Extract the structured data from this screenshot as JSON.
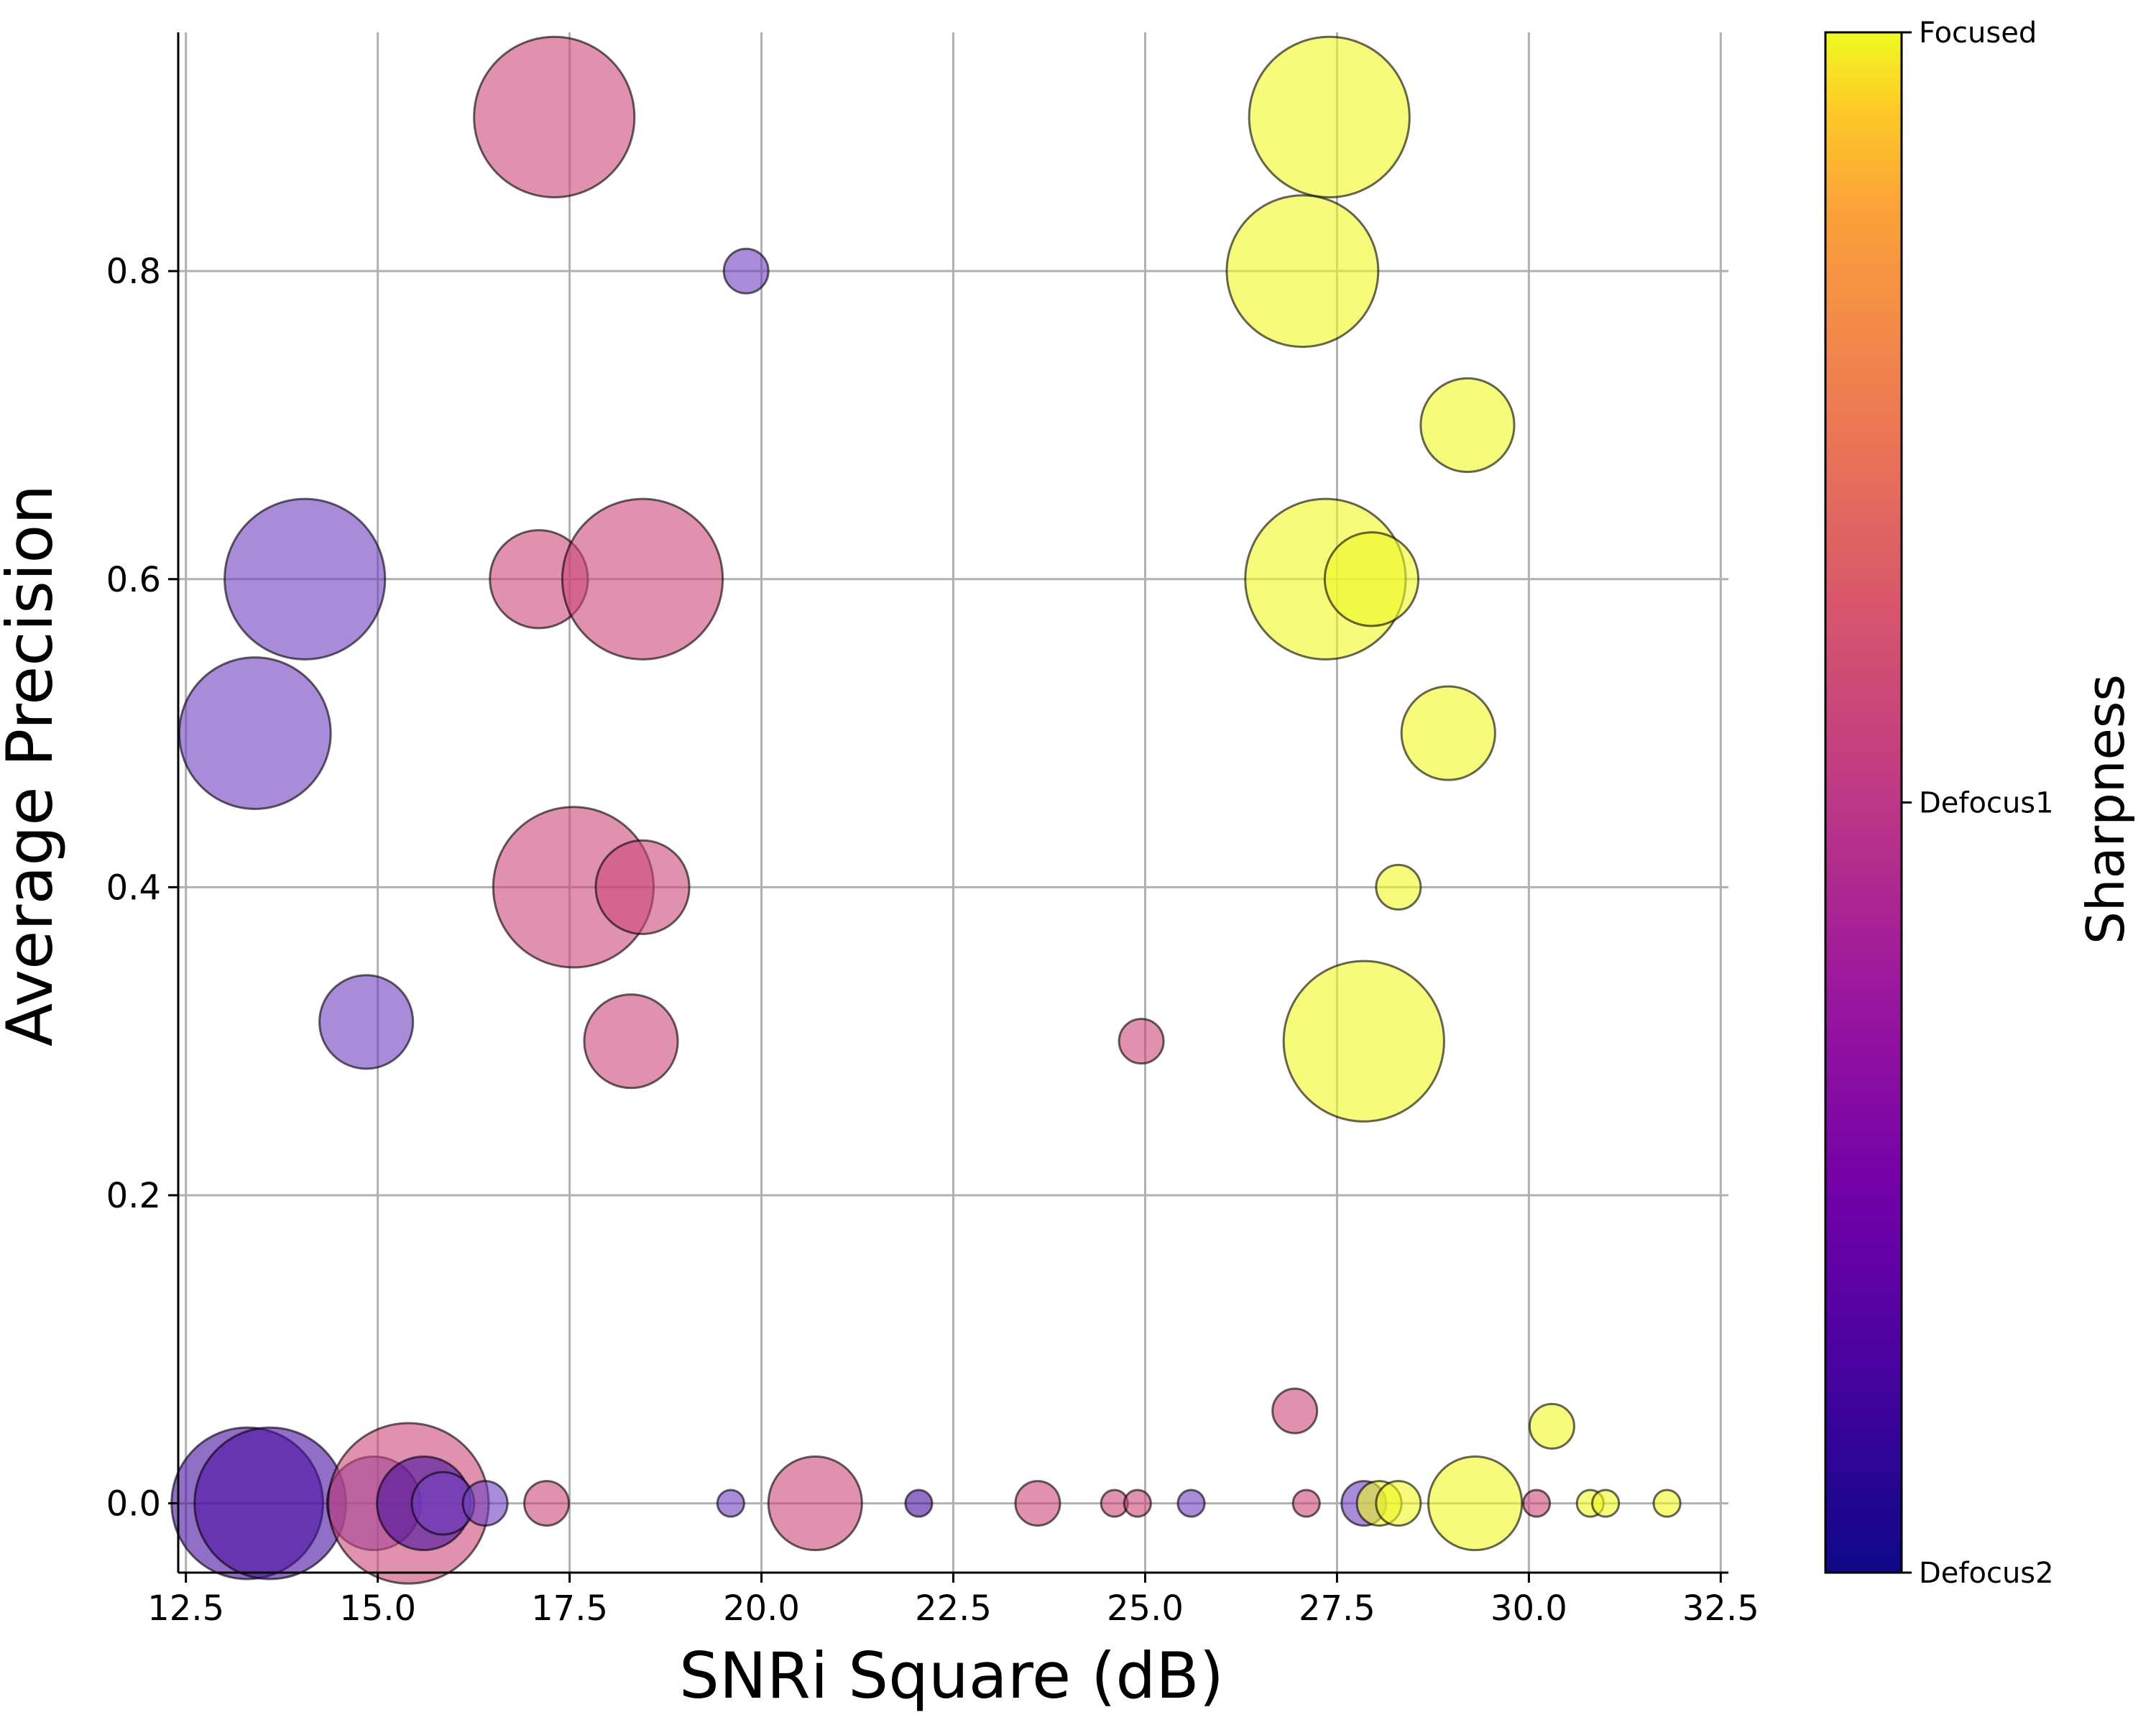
{
  "chart_data": {
    "type": "scatter",
    "xlabel": "SNRi Square (dB)",
    "ylabel": "Average Precision",
    "xlim": [
      12.4,
      32.6
    ],
    "ylim": [
      -0.045,
      0.955
    ],
    "xticks": [
      12.5,
      15.0,
      17.5,
      20.0,
      22.5,
      25.0,
      27.5,
      30.0,
      32.5
    ],
    "xtick_labels": [
      "12.5",
      "15.0",
      "17.5",
      "20.0",
      "22.5",
      "25.0",
      "27.5",
      "30.0",
      "32.5"
    ],
    "yticks": [
      0.0,
      0.2,
      0.4,
      0.6,
      0.8
    ],
    "ytick_labels": [
      "0.0",
      "0.2",
      "0.4",
      "0.6",
      "0.8"
    ],
    "grid": true,
    "colorbar": {
      "title": "Sharpness",
      "colormap": "plasma",
      "labels": [
        {
          "label": "Defocus2",
          "value": 0.0
        },
        {
          "label": "Defocus1",
          "value": 0.5
        },
        {
          "label": "Focused",
          "value": 1.0
        }
      ],
      "colors": {
        "Defocus2": "#8755c8",
        "Defocus1": "#db5c8c",
        "Focused": "#f0f921"
      }
    },
    "point_colors": {
      "Defocus2": "#7040c0",
      "Defocus2_dark": "#4a0fa0",
      "Defocus1": "#cc4778",
      "Focused": "#f0f921"
    },
    "points": [
      {
        "x": 17.3,
        "y": 0.9,
        "size": 36,
        "cls": "Defocus1"
      },
      {
        "x": 27.4,
        "y": 0.9,
        "size": 36,
        "cls": "Focused"
      },
      {
        "x": 19.8,
        "y": 0.8,
        "size": 10,
        "cls": "Defocus2"
      },
      {
        "x": 27.05,
        "y": 0.8,
        "size": 34,
        "cls": "Focused"
      },
      {
        "x": 29.2,
        "y": 0.7,
        "size": 21,
        "cls": "Focused"
      },
      {
        "x": 14.05,
        "y": 0.6,
        "size": 36,
        "cls": "Defocus2"
      },
      {
        "x": 17.1,
        "y": 0.6,
        "size": 22,
        "cls": "Defocus1"
      },
      {
        "x": 18.45,
        "y": 0.6,
        "size": 36,
        "cls": "Defocus1"
      },
      {
        "x": 27.35,
        "y": 0.6,
        "size": 36,
        "cls": "Focused"
      },
      {
        "x": 27.95,
        "y": 0.6,
        "size": 21,
        "cls": "Focused"
      },
      {
        "x": 13.4,
        "y": 0.5,
        "size": 34,
        "cls": "Defocus2"
      },
      {
        "x": 28.95,
        "y": 0.5,
        "size": 21,
        "cls": "Focused"
      },
      {
        "x": 17.55,
        "y": 0.4,
        "size": 36,
        "cls": "Defocus1"
      },
      {
        "x": 18.45,
        "y": 0.4,
        "size": 21,
        "cls": "Defocus1"
      },
      {
        "x": 28.3,
        "y": 0.4,
        "size": 10,
        "cls": "Focused"
      },
      {
        "x": 14.85,
        "y": 0.3125,
        "size": 21,
        "cls": "Defocus2"
      },
      {
        "x": 18.3,
        "y": 0.3,
        "size": 21,
        "cls": "Defocus1"
      },
      {
        "x": 24.95,
        "y": 0.3,
        "size": 10,
        "cls": "Defocus1"
      },
      {
        "x": 27.85,
        "y": 0.3,
        "size": 36,
        "cls": "Focused"
      },
      {
        "x": 26.95,
        "y": 0.06,
        "size": 10,
        "cls": "Defocus1"
      },
      {
        "x": 30.3,
        "y": 0.05,
        "size": 10,
        "cls": "Focused"
      },
      {
        "x": 13.3,
        "y": 0.0,
        "size": 34,
        "cls": "Defocus2_dark"
      },
      {
        "x": 13.6,
        "y": 0.0,
        "size": 34,
        "cls": "Defocus2_dark"
      },
      {
        "x": 14.95,
        "y": 0.0,
        "size": 21,
        "cls": "Defocus2"
      },
      {
        "x": 15.4,
        "y": 0.0,
        "size": 36,
        "cls": "Defocus1"
      },
      {
        "x": 15.6,
        "y": 0.0,
        "size": 21,
        "cls": "Defocus2_dark"
      },
      {
        "x": 15.85,
        "y": 0.0,
        "size": 14,
        "cls": "Defocus2"
      },
      {
        "x": 16.4,
        "y": 0.0,
        "size": 10,
        "cls": "Defocus2"
      },
      {
        "x": 17.2,
        "y": 0.0,
        "size": 10,
        "cls": "Defocus1"
      },
      {
        "x": 19.6,
        "y": 0.0,
        "size": 6,
        "cls": "Defocus2"
      },
      {
        "x": 20.7,
        "y": 0.0,
        "size": 21,
        "cls": "Defocus1"
      },
      {
        "x": 22.05,
        "y": 0.0,
        "size": 6,
        "cls": "Defocus2_dark"
      },
      {
        "x": 23.6,
        "y": 0.0,
        "size": 10,
        "cls": "Defocus1"
      },
      {
        "x": 24.6,
        "y": 0.0,
        "size": 6,
        "cls": "Defocus1"
      },
      {
        "x": 24.9,
        "y": 0.0,
        "size": 6,
        "cls": "Defocus1"
      },
      {
        "x": 25.6,
        "y": 0.0,
        "size": 6,
        "cls": "Defocus2"
      },
      {
        "x": 27.1,
        "y": 0.0,
        "size": 6,
        "cls": "Defocus1"
      },
      {
        "x": 27.85,
        "y": 0.0,
        "size": 10,
        "cls": "Defocus2"
      },
      {
        "x": 28.05,
        "y": 0.0,
        "size": 10,
        "cls": "Focused"
      },
      {
        "x": 28.3,
        "y": 0.0,
        "size": 10,
        "cls": "Focused"
      },
      {
        "x": 29.3,
        "y": 0.0,
        "size": 21,
        "cls": "Focused"
      },
      {
        "x": 30.1,
        "y": 0.0,
        "size": 6,
        "cls": "Defocus1"
      },
      {
        "x": 30.8,
        "y": 0.0,
        "size": 6,
        "cls": "Focused"
      },
      {
        "x": 31.0,
        "y": 0.0,
        "size": 6,
        "cls": "Focused"
      },
      {
        "x": 31.8,
        "y": 0.0,
        "size": 6,
        "cls": "Focused"
      }
    ]
  }
}
